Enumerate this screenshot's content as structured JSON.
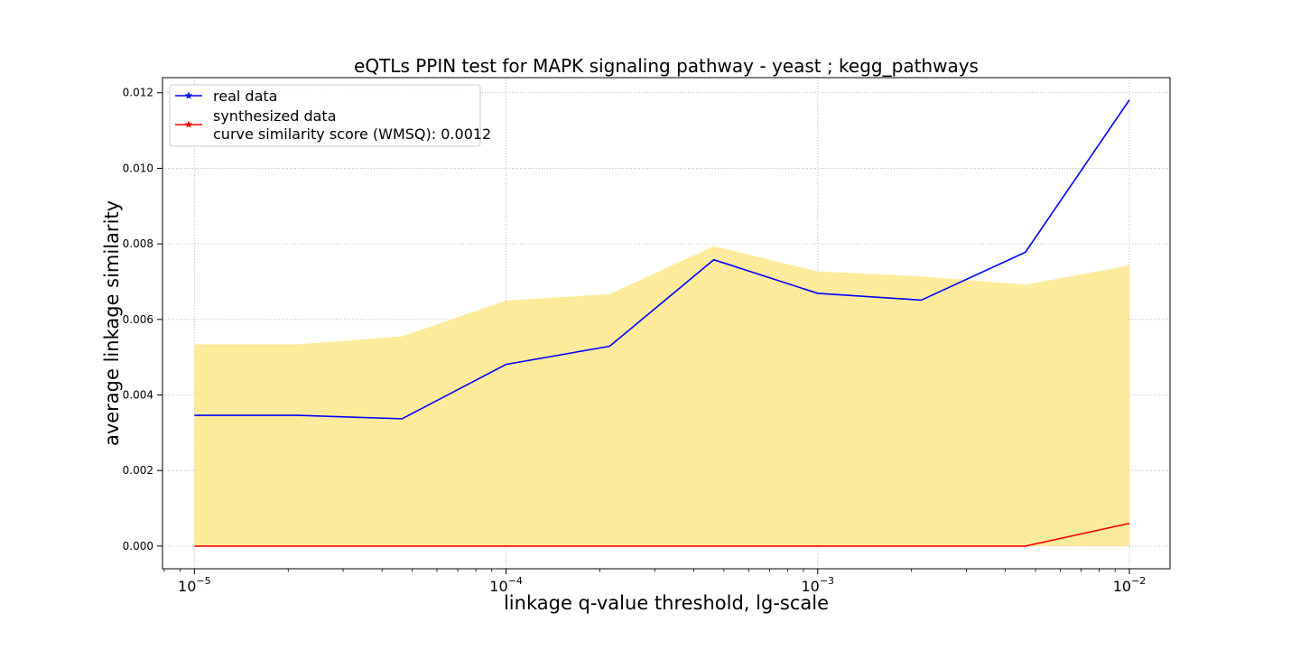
{
  "chart_data": {
    "type": "line",
    "title": "eQTLs PPIN test for MAPK signaling pathway - yeast ; kegg_pathways",
    "xlabel": "linkage q-value threshold, lg-scale",
    "ylabel": "average linkage similarity",
    "xscale": "log",
    "x": [
      1e-05,
      2.15e-05,
      4.64e-05,
      0.0001,
      0.000215,
      0.000464,
      0.001,
      0.00215,
      0.00464,
      0.01
    ],
    "xticks": [
      {
        "value": 1e-05,
        "base": "10",
        "exp": "−5"
      },
      {
        "value": 0.0001,
        "base": "10",
        "exp": "−4"
      },
      {
        "value": 0.001,
        "base": "10",
        "exp": "−3"
      },
      {
        "value": 0.01,
        "base": "10",
        "exp": "−2"
      }
    ],
    "yticks": [
      "0.000",
      "0.002",
      "0.004",
      "0.006",
      "0.008",
      "0.010",
      "0.012"
    ],
    "ylim": [
      -0.0006,
      0.0124
    ],
    "xlim": [
      7.9e-06,
      0.0135
    ],
    "grid": true,
    "legend_position": "top-left",
    "series": [
      {
        "name": "real data",
        "color": "#0000ff",
        "marker": "star",
        "values": [
          0.00346,
          0.00346,
          0.00337,
          0.00481,
          0.00529,
          0.00758,
          0.00669,
          0.00651,
          0.00778,
          0.01181
        ]
      },
      {
        "name": "synthesized data",
        "color": "#ff0000",
        "marker": "star",
        "values": [
          0.0,
          0.0,
          0.0,
          0.0,
          0.0,
          0.0,
          0.0,
          0.0,
          0.0,
          0.0006
        ]
      }
    ],
    "band": {
      "color": "#fde68a",
      "lower": [
        0.0,
        0.0,
        0.0,
        0.0,
        0.0,
        0.0,
        0.0,
        0.0,
        0.0,
        0.0
      ],
      "upper": [
        0.00534,
        0.00534,
        0.00555,
        0.0065,
        0.00667,
        0.00794,
        0.00727,
        0.00714,
        0.00692,
        0.00743
      ]
    },
    "legend_note": "curve similarity score (WMSQ): 0.0012"
  }
}
